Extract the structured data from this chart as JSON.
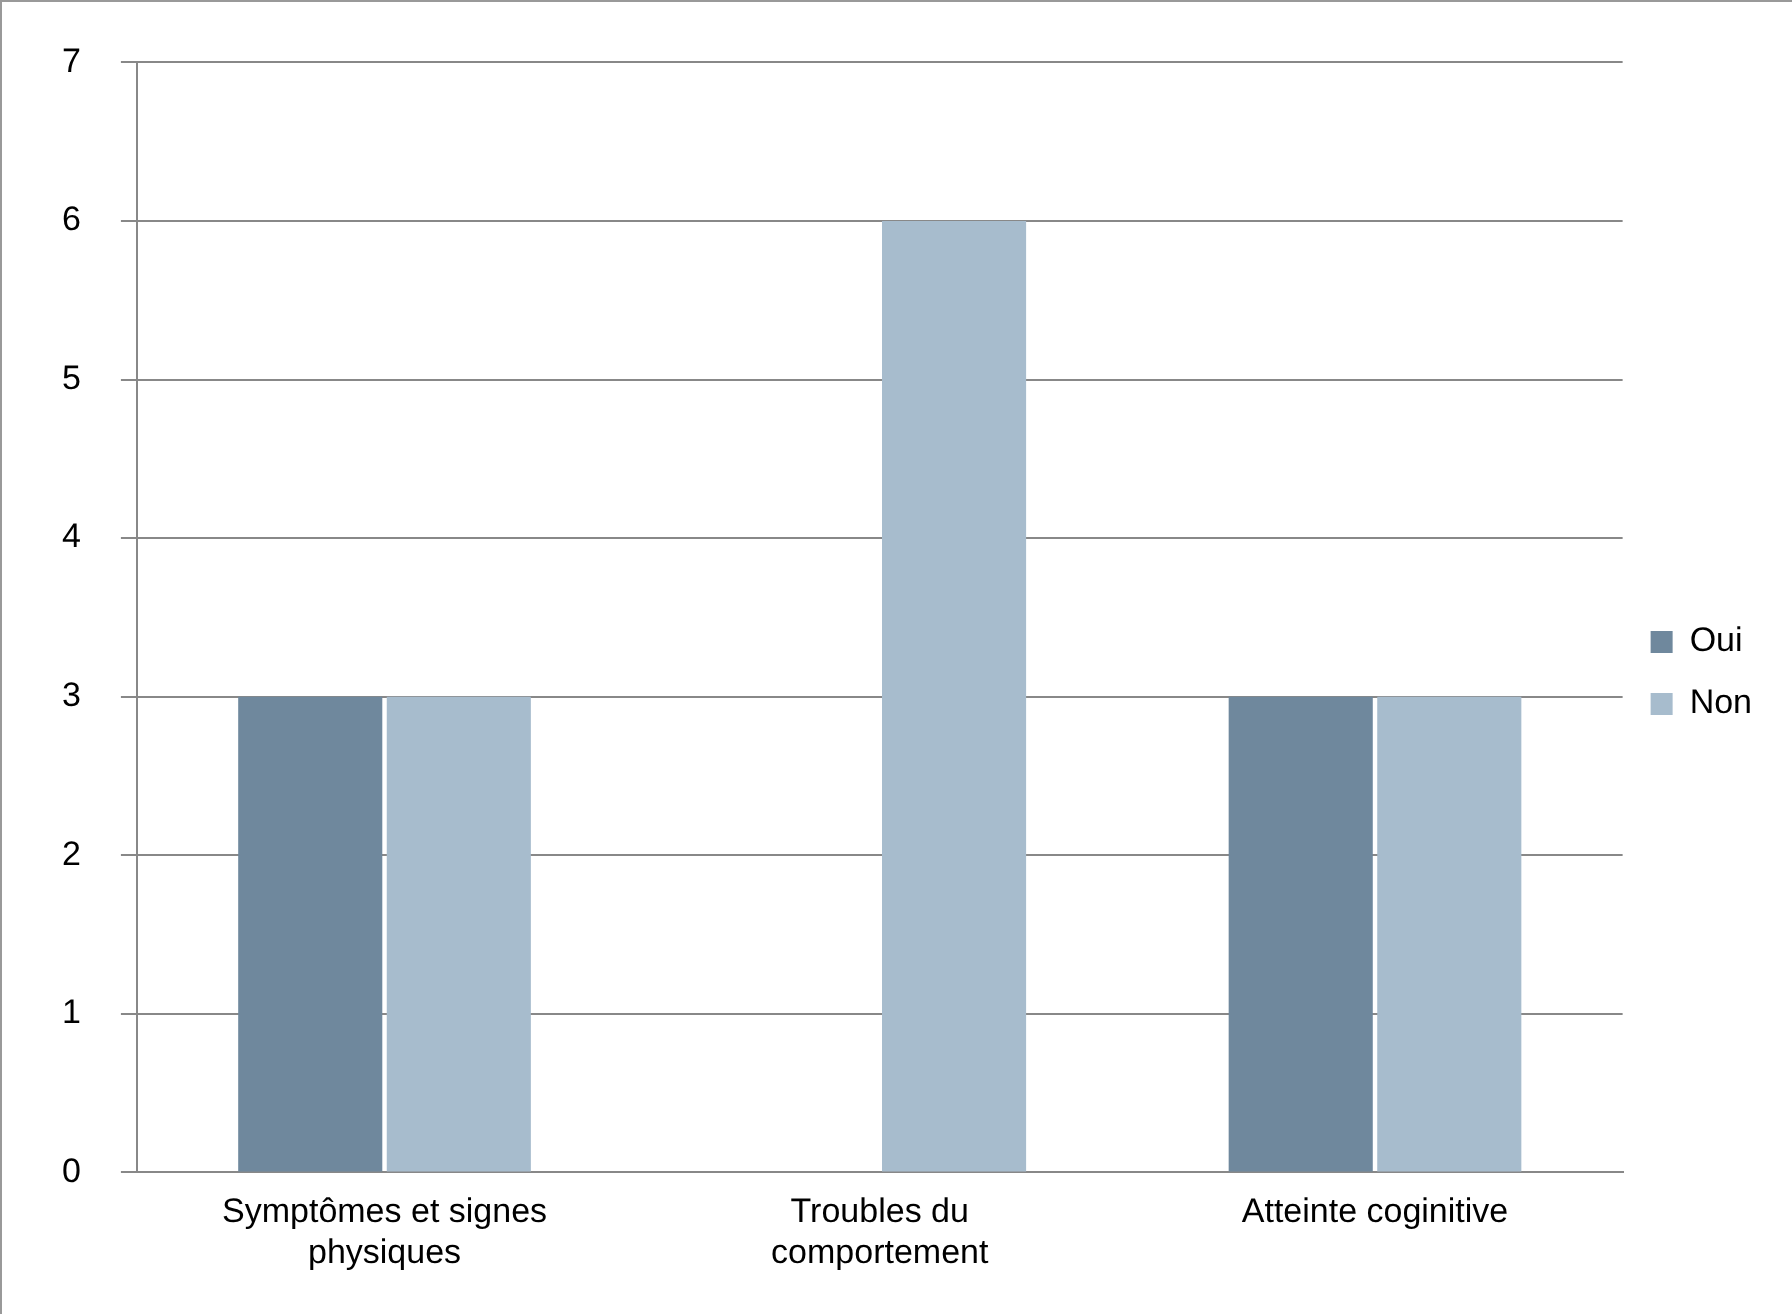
{
  "chart_data": {
    "type": "bar",
    "categories": [
      "Symptômes et signes physiques",
      "Troubles du comportement",
      "Atteinte coginitive"
    ],
    "series": [
      {
        "name": "Oui",
        "color": "#6f889d",
        "values": [
          3,
          0,
          3
        ]
      },
      {
        "name": "Non",
        "color": "#a7bccd",
        "values": [
          3,
          6,
          3
        ]
      }
    ],
    "ylim": [
      0,
      7
    ],
    "yticks": [
      0,
      1,
      2,
      3,
      4,
      5,
      6,
      7
    ],
    "grid": "y",
    "legend": "right"
  }
}
